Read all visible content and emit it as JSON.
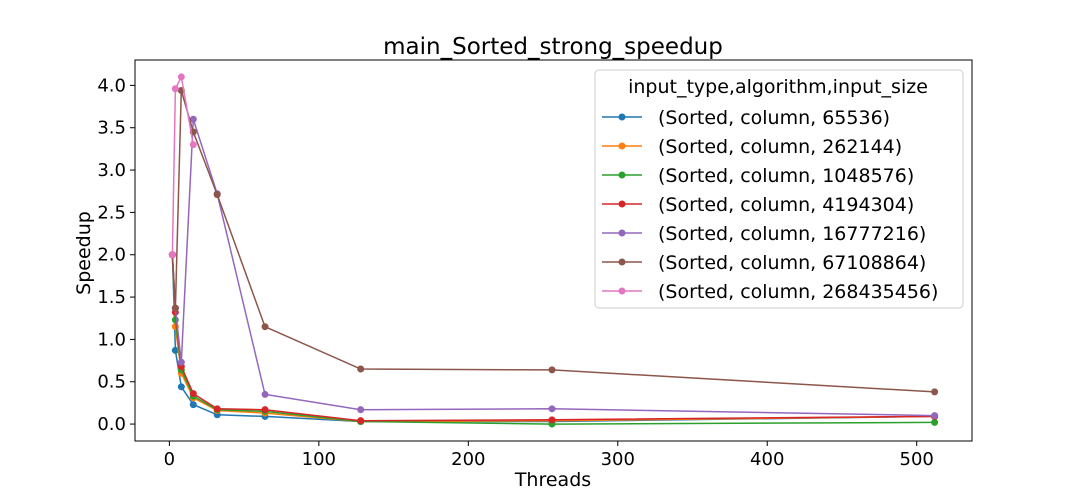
{
  "chart_data": {
    "type": "line",
    "title": "main_Sorted_strong_speedup",
    "xlabel": "Threads",
    "ylabel": "Speedup",
    "xlim": [
      -23,
      537
    ],
    "ylim": [
      -0.2,
      4.3
    ],
    "xticks": [
      0,
      100,
      200,
      300,
      400,
      500
    ],
    "yticks": [
      0.0,
      0.5,
      1.0,
      1.5,
      2.0,
      2.5,
      3.0,
      3.5,
      4.0
    ],
    "xtick_labels": [
      "0",
      "100",
      "200",
      "300",
      "400",
      "500"
    ],
    "ytick_labels": [
      "0.0",
      "0.5",
      "1.0",
      "1.5",
      "2.0",
      "2.5",
      "3.0",
      "3.5",
      "4.0"
    ],
    "legend": {
      "title": "input_type,algorithm,input_size",
      "position": "upper right"
    },
    "series": [
      {
        "name": "(Sorted, column, 65536)",
        "color": "#1f77b4",
        "points": [
          [
            2,
            2.0
          ],
          [
            4,
            0.87
          ],
          [
            8,
            0.44
          ],
          [
            16,
            0.23
          ],
          [
            32,
            0.11
          ],
          [
            64,
            0.09
          ],
          [
            128,
            0.03
          ],
          [
            256,
            0.03
          ],
          [
            512,
            0.09
          ]
        ]
      },
      {
        "name": "(Sorted, column, 262144)",
        "color": "#ff7f0e",
        "points": [
          [
            2,
            2.0
          ],
          [
            4,
            1.15
          ],
          [
            8,
            0.6
          ],
          [
            16,
            0.31
          ],
          [
            32,
            0.16
          ],
          [
            64,
            0.13
          ],
          [
            128,
            0.03
          ],
          [
            256,
            0.04
          ],
          [
            512,
            0.09
          ]
        ]
      },
      {
        "name": "(Sorted, column, 1048576)",
        "color": "#2ca02c",
        "points": [
          [
            2,
            2.0
          ],
          [
            4,
            1.23
          ],
          [
            8,
            0.64
          ],
          [
            16,
            0.33
          ],
          [
            32,
            0.17
          ],
          [
            64,
            0.15
          ],
          [
            128,
            0.03
          ],
          [
            256,
            0.0
          ],
          [
            512,
            0.02
          ]
        ]
      },
      {
        "name": "(Sorted, column, 4194304)",
        "color": "#d62728",
        "points": [
          [
            2,
            2.0
          ],
          [
            4,
            1.32
          ],
          [
            8,
            0.68
          ],
          [
            16,
            0.36
          ],
          [
            32,
            0.18
          ],
          [
            64,
            0.17
          ],
          [
            128,
            0.04
          ],
          [
            256,
            0.05
          ],
          [
            512,
            0.09
          ]
        ]
      },
      {
        "name": "(Sorted, column, 16777216)",
        "color": "#9467bd",
        "points": [
          [
            2,
            2.0
          ],
          [
            4,
            1.37
          ],
          [
            8,
            0.73
          ],
          [
            16,
            3.6
          ],
          [
            32,
            2.72
          ],
          [
            64,
            0.35
          ],
          [
            128,
            0.17
          ],
          [
            256,
            0.18
          ],
          [
            512,
            0.1
          ]
        ]
      },
      {
        "name": "(Sorted, column, 67108864)",
        "color": "#8c564b",
        "points": [
          [
            2,
            2.0
          ],
          [
            4,
            1.37
          ],
          [
            8,
            3.94
          ],
          [
            16,
            3.45
          ],
          [
            32,
            2.71
          ],
          [
            64,
            1.15
          ],
          [
            128,
            0.65
          ],
          [
            256,
            0.64
          ],
          [
            512,
            0.38
          ]
        ]
      },
      {
        "name": "(Sorted, column, 268435456)",
        "color": "#e377c2",
        "points": [
          [
            2,
            2.0
          ],
          [
            4,
            3.96
          ],
          [
            8,
            4.1
          ],
          [
            16,
            3.3
          ]
        ]
      }
    ]
  }
}
